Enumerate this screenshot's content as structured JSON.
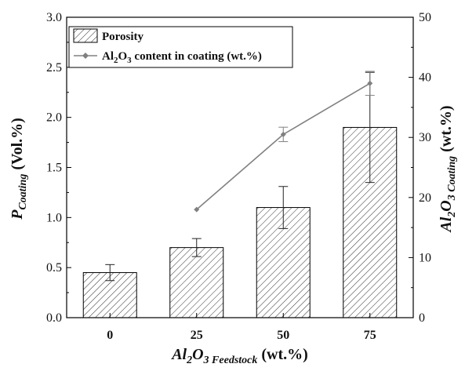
{
  "chart_data": {
    "type": "bar",
    "categories": [
      "0",
      "25",
      "50",
      "75"
    ],
    "series": [
      {
        "name": "Porosity",
        "type": "bar",
        "axis": "left",
        "values": [
          0.45,
          0.7,
          1.1,
          1.9
        ],
        "errors": [
          0.08,
          0.09,
          0.21,
          0.55
        ],
        "pattern": "diagonal-hatch"
      },
      {
        "name": "Al2O3 content in coating (wt.%)",
        "type": "line",
        "axis": "right",
        "values": [
          null,
          18.0,
          30.5,
          39.0
        ],
        "errors": [
          null,
          0,
          1.2,
          2.0
        ],
        "color": "#808080"
      }
    ],
    "xlabel": {
      "main": "Al",
      "sub1": "2",
      "mid": "O",
      "sub2": "3 Feedstock",
      "tail": " (wt.%)"
    },
    "ylabel": {
      "main": "P",
      "sub": "Coating",
      "tail": " (Vol.%)"
    },
    "y2label": {
      "main": "Al",
      "sub1": "2",
      "mid": "O",
      "sub2": "3 Coating",
      "tail": " (wt.%)"
    },
    "ylim": [
      0,
      3.0
    ],
    "y2lim": [
      0,
      50
    ],
    "yticks": [
      "0.0",
      "0.5",
      "1.0",
      "1.5",
      "2.0",
      "2.5",
      "3.0"
    ],
    "y2ticks": [
      "0",
      "10",
      "20",
      "30",
      "40",
      "50"
    ],
    "legend": {
      "position": "top-left",
      "porosity_label": "Porosity",
      "line_label": {
        "pre": "Al",
        "s1": "2",
        "mid": "O",
        "s2": "3",
        "post": " content in coating (wt.%)"
      }
    },
    "grid": false
  }
}
